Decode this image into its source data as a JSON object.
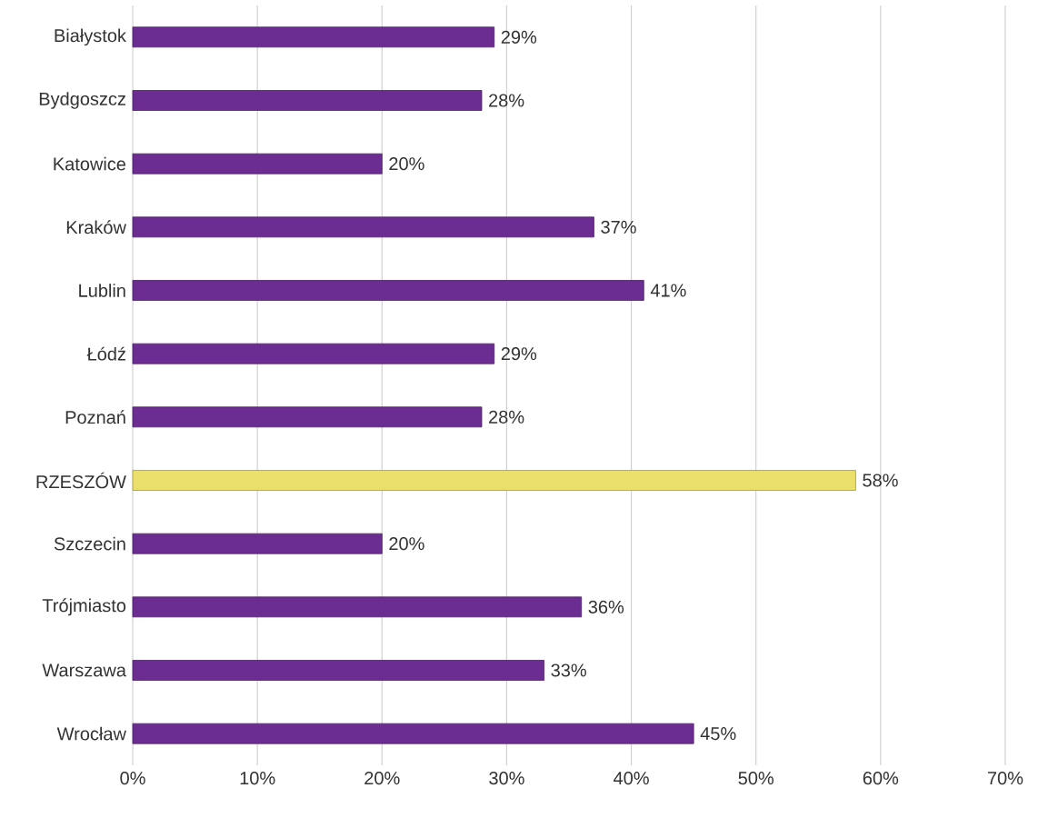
{
  "chart_data": {
    "type": "bar",
    "orientation": "horizontal",
    "categories": [
      "Białystok",
      "Bydgoszcz",
      "Katowice",
      "Kraków",
      "Lublin",
      "Łódź",
      "Poznań",
      "RZESZÓW",
      "Szczecin",
      "Trójmiasto",
      "Warszawa",
      "Wrocław"
    ],
    "values": [
      29,
      28,
      20,
      37,
      41,
      29,
      28,
      58,
      20,
      36,
      33,
      45
    ],
    "colors": [
      "#6b2d91",
      "#6b2d91",
      "#6b2d91",
      "#6b2d91",
      "#6b2d91",
      "#6b2d91",
      "#6b2d91",
      "#e9df6a",
      "#6b2d91",
      "#6b2d91",
      "#6b2d91",
      "#6b2d91"
    ],
    "value_labels": [
      "29%",
      "28%",
      "20%",
      "37%",
      "41%",
      "29%",
      "28%",
      "58%",
      "20%",
      "36%",
      "33%",
      "45%"
    ],
    "xlim": [
      0,
      70
    ],
    "xticks": [
      {
        "value": 0,
        "label": "0%"
      },
      {
        "value": 10,
        "label": "10%"
      },
      {
        "value": 20,
        "label": "20%"
      },
      {
        "value": 30,
        "label": "30%"
      },
      {
        "value": 40,
        "label": "40%"
      },
      {
        "value": 50,
        "label": "50%"
      },
      {
        "value": 60,
        "label": "60%"
      },
      {
        "value": 70,
        "label": "70%"
      }
    ],
    "grid": "x"
  }
}
